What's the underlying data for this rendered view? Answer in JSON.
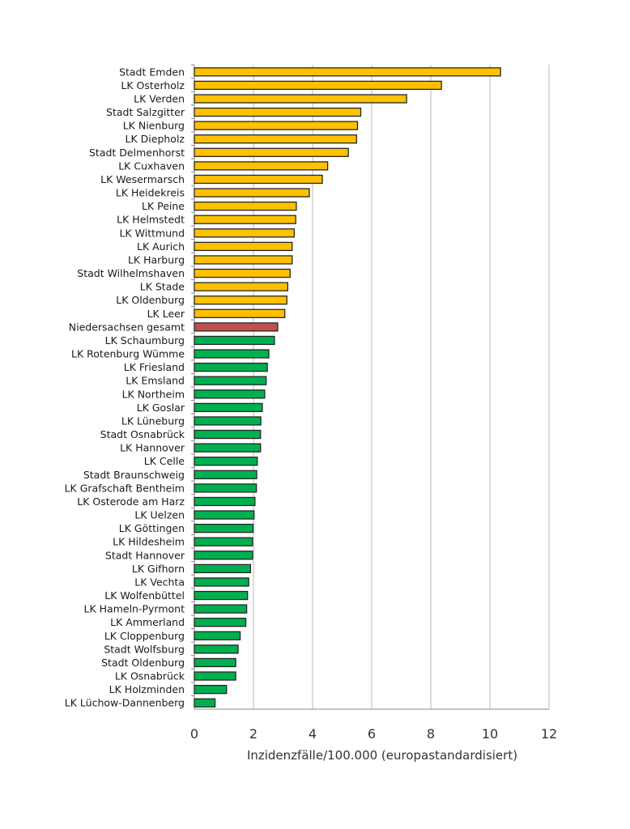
{
  "chart_data": {
    "type": "bar",
    "orientation": "horizontal",
    "title": "",
    "xlabel": "Inzidenzfälle/100.000  (europastandardisiert)",
    "ylabel": "",
    "xlim": [
      0,
      12
    ],
    "xticks": [
      0,
      2,
      4,
      6,
      8,
      10,
      12
    ],
    "grid": "vertical",
    "legend": "none",
    "colors": {
      "above": "#FFC000",
      "total": "#C0504D",
      "below": "#00B050",
      "outline": "#262626",
      "grid": "#D0D0D0"
    },
    "categories": [
      "Stadt Emden",
      "LK Osterholz",
      "LK Verden",
      "Stadt Salzgitter",
      "LK Nienburg",
      "LK Diepholz",
      "Stadt Delmenhorst",
      "LK Cuxhaven",
      "LK Wesermarsch",
      "LK Heidekreis",
      "LK  Peine",
      "LK Helmstedt",
      "LK Wittmund",
      "LK Aurich",
      "LK Harburg",
      "Stadt Wilhelmshaven",
      "LK Stade",
      "LK Oldenburg",
      "LK Leer",
      "Niedersachsen gesamt",
      "LK Schaumburg",
      "LK Rotenburg Wümme",
      "LK Friesland",
      "LK Emsland",
      "LK Northeim",
      "LK Goslar",
      "LK Lüneburg",
      "Stadt Osnabrück",
      "LK Hannover",
      "LK Celle",
      "Stadt Braunschweig",
      "LK Grafschaft Bentheim",
      "LK Osterode am Harz",
      "LK Uelzen",
      "LK Göttingen",
      "LK Hildesheim",
      "Stadt Hannover",
      "LK Gifhorn",
      "LK Vechta",
      "LK Wolfenbüttel",
      "LK Hameln-Pyrmont",
      "LK Ammerland",
      "LK Cloppenburg",
      "Stadt Wolfsburg",
      "Stadt Oldenburg",
      "LK Osnabrück",
      "LK Holzminden",
      "LK Lüchow-Dannenberg"
    ],
    "values": [
      10.36,
      8.36,
      7.18,
      5.63,
      5.52,
      5.49,
      5.21,
      4.51,
      4.33,
      3.89,
      3.45,
      3.43,
      3.38,
      3.31,
      3.31,
      3.24,
      3.16,
      3.13,
      3.06,
      2.82,
      2.71,
      2.52,
      2.47,
      2.43,
      2.38,
      2.3,
      2.25,
      2.24,
      2.24,
      2.13,
      2.11,
      2.1,
      2.05,
      2.02,
      1.99,
      1.97,
      1.97,
      1.9,
      1.84,
      1.8,
      1.77,
      1.74,
      1.55,
      1.48,
      1.4,
      1.4,
      1.09,
      0.7
    ],
    "total_category": "Niedersachsen gesamt"
  }
}
